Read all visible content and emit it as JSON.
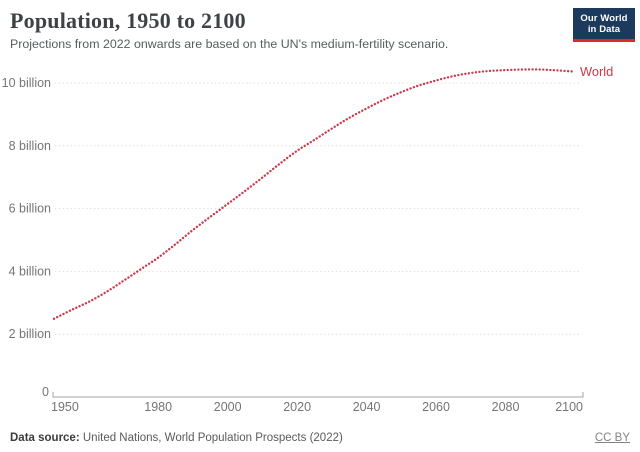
{
  "header": {
    "title": "Population, 1950 to 2100",
    "subtitle": "Projections from 2022 onwards are based on the UN's medium-fertility scenario.",
    "logo": {
      "line1": "Our World",
      "line2": "in Data",
      "bg_color": "#1b3a5e",
      "stripe_color": "#dc2a29"
    }
  },
  "footer": {
    "datasource_label": "Data source:",
    "datasource_value": " United Nations, World Population Prospects (2022)",
    "license": "CC BY"
  },
  "chart_data": {
    "type": "line",
    "title": "Population, 1950 to 2100",
    "xlabel": "",
    "ylabel": "",
    "unit": "billion people",
    "xlim": [
      1950,
      2100
    ],
    "ylim": [
      0,
      10.8
    ],
    "grid": "dotted-horizontal",
    "legend_position": "line-end-right",
    "x_ticks": [
      1950,
      1980,
      2000,
      2020,
      2040,
      2060,
      2080,
      2100
    ],
    "y_ticks": [
      {
        "value": 0,
        "label": "0"
      },
      {
        "value": 2,
        "label": "2 billion"
      },
      {
        "value": 4,
        "label": "4 billion"
      },
      {
        "value": 6,
        "label": "6 billion"
      },
      {
        "value": 8,
        "label": "8 billion"
      },
      {
        "value": 10,
        "label": "10 billion"
      }
    ],
    "series": [
      {
        "name": "World",
        "color": "#cd3748",
        "point_style": "dotted",
        "x": [
          1950,
          1955,
          1960,
          1965,
          1970,
          1975,
          1980,
          1985,
          1990,
          1995,
          2000,
          2005,
          2010,
          2015,
          2020,
          2025,
          2030,
          2035,
          2040,
          2045,
          2050,
          2055,
          2060,
          2065,
          2070,
          2075,
          2080,
          2085,
          2090,
          2095,
          2100
        ],
        "values": [
          2.49,
          2.77,
          3.03,
          3.34,
          3.7,
          4.07,
          4.44,
          4.87,
          5.32,
          5.74,
          6.15,
          6.56,
          6.99,
          7.43,
          7.84,
          8.19,
          8.55,
          8.89,
          9.19,
          9.47,
          9.71,
          9.92,
          10.08,
          10.22,
          10.32,
          10.38,
          10.41,
          10.43,
          10.43,
          10.4,
          10.36
        ]
      }
    ],
    "grid_color": "#dcdcdc",
    "axis_color": "#a3a3a3",
    "tick_label_color": "#757575"
  }
}
